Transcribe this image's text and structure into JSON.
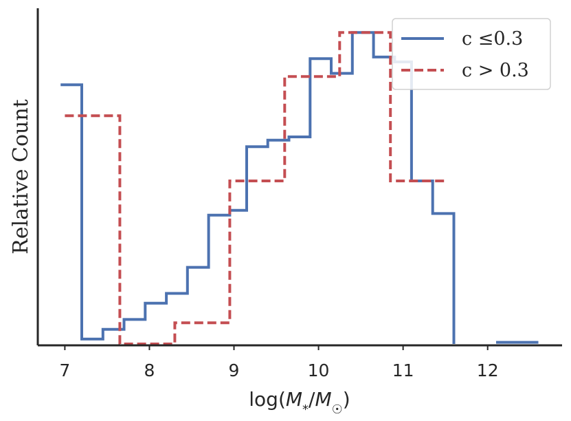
{
  "chart_data": {
    "type": "line",
    "title": "",
    "xlabel": "log(M*/M☉)",
    "ylabel": "Relative Count",
    "xlim": [
      6.68,
      12.88
    ],
    "ylim": [
      0,
      1.0
    ],
    "xticks": [
      7,
      8,
      9,
      10,
      11,
      12
    ],
    "xtick_labels": [
      "7",
      "8",
      "9",
      "10",
      "11",
      "12"
    ],
    "yticks_visible": false,
    "grid": false,
    "legend_position": "top-right",
    "series": [
      {
        "name": "c ≤0.3",
        "color": "#4c72b0",
        "linestyle": "solid",
        "x": [
          6.95,
          7.2,
          7.2,
          7.45,
          7.45,
          7.7,
          7.7,
          7.95,
          7.95,
          8.2,
          8.2,
          8.45,
          8.45,
          8.7,
          8.7,
          8.95,
          8.95,
          9.15,
          9.15,
          9.4,
          9.4,
          9.65,
          9.65,
          9.9,
          9.9,
          10.15,
          10.15,
          10.4,
          10.4,
          10.65,
          10.65,
          10.9,
          10.9,
          11.1,
          11.1,
          11.35,
          11.35,
          11.6,
          11.6
        ],
        "y": [
          0.795,
          0.795,
          0.015,
          0.015,
          0.045,
          0.045,
          0.075,
          0.075,
          0.125,
          0.125,
          0.155,
          0.155,
          0.235,
          0.235,
          0.395,
          0.395,
          0.41,
          0.41,
          0.605,
          0.605,
          0.625,
          0.625,
          0.635,
          0.635,
          0.875,
          0.875,
          0.83,
          0.83,
          0.955,
          0.955,
          0.88,
          0.88,
          0.865,
          0.865,
          0.5,
          0.5,
          0.4,
          0.4,
          0.0
        ]
      },
      {
        "name": "c > 0.3",
        "color": "#c44e52",
        "linestyle": "dashed",
        "x": [
          7.0,
          7.65,
          7.65,
          8.3,
          8.3,
          8.95,
          8.95,
          9.6,
          9.6,
          10.25,
          10.25,
          10.85,
          10.85,
          11.5
        ],
        "y": [
          0.7,
          0.7,
          0.0,
          0.0,
          0.065,
          0.065,
          0.5,
          0.5,
          0.82,
          0.82,
          0.955,
          0.955,
          0.5,
          0.5
        ]
      },
      {
        "name": "",
        "color": "#4c72b0",
        "linestyle": "solid",
        "x": [
          12.1,
          12.6
        ],
        "y": [
          0.005,
          0.005
        ]
      }
    ]
  }
}
